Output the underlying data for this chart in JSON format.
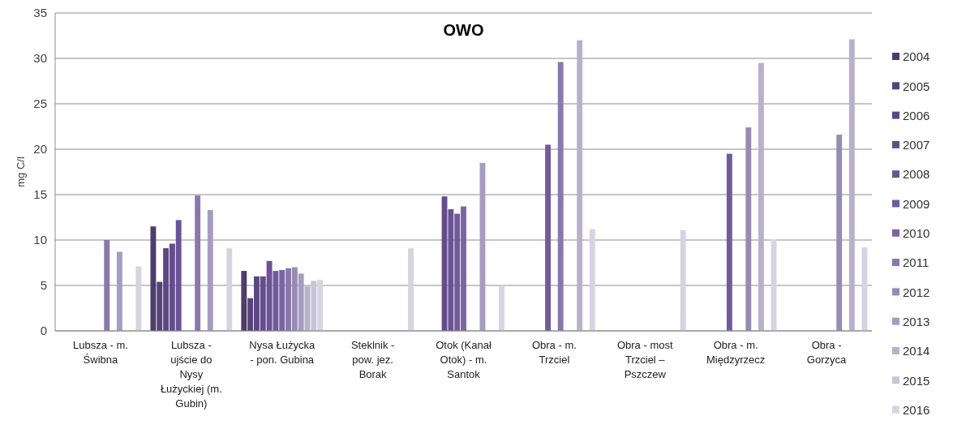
{
  "chart_data": {
    "type": "bar",
    "title": "OWO",
    "ylabel": "mg C/l",
    "categories": [
      "Lubsza - m. Świbna",
      "Lubsza - ujście do Nysy Łużyckiej (m. Gubin)",
      "Nysa Łużycka - pon. Gubina",
      "Steklnik - pow. jez. Borak",
      "Otok (Kanał Otok) - m. Santok",
      "Obra - m. Trzciel",
      "Obra - most Trzciel – Pszczew",
      "Obra - m. Międzyrzecz",
      "Obra - Gorzyca"
    ],
    "series": [
      {
        "name": "2004",
        "color": "#4e3d6b",
        "values": [
          null,
          11.5,
          6.6,
          null,
          null,
          null,
          null,
          null,
          null
        ]
      },
      {
        "name": "2005",
        "color": "#55437a",
        "values": [
          null,
          5.4,
          3.6,
          null,
          null,
          null,
          null,
          null,
          null
        ]
      },
      {
        "name": "2006",
        "color": "#5c4783",
        "values": [
          null,
          9.1,
          6.0,
          null,
          null,
          null,
          null,
          null,
          null
        ]
      },
      {
        "name": "2007",
        "color": "#634d8b",
        "values": [
          null,
          9.6,
          6.0,
          null,
          14.8,
          null,
          null,
          null,
          null
        ]
      },
      {
        "name": "2008",
        "color": "#6a5394",
        "values": [
          null,
          12.2,
          7.7,
          null,
          13.4,
          null,
          null,
          null,
          null
        ]
      },
      {
        "name": "2009",
        "color": "#725a9c",
        "values": [
          null,
          null,
          6.6,
          null,
          12.9,
          20.5,
          null,
          19.5,
          null
        ]
      },
      {
        "name": "2010",
        "color": "#7b63a5",
        "values": [
          null,
          null,
          6.7,
          null,
          13.7,
          null,
          null,
          null,
          null
        ]
      },
      {
        "name": "2011",
        "color": "#8a77ab",
        "values": [
          10.0,
          14.9,
          6.9,
          null,
          null,
          29.6,
          null,
          null,
          null
        ]
      },
      {
        "name": "2012",
        "color": "#978ab3",
        "values": [
          null,
          null,
          7.0,
          null,
          null,
          null,
          null,
          22.4,
          21.6
        ]
      },
      {
        "name": "2013",
        "color": "#a69cbf",
        "values": [
          8.7,
          13.3,
          6.3,
          null,
          18.5,
          null,
          null,
          null,
          null
        ]
      },
      {
        "name": "2014",
        "color": "#b8b1cc",
        "values": [
          null,
          null,
          4.9,
          null,
          null,
          32.0,
          null,
          29.5,
          32.1
        ]
      },
      {
        "name": "2015",
        "color": "#c8c4d8",
        "values": [
          null,
          null,
          5.5,
          null,
          null,
          null,
          null,
          null,
          null
        ]
      },
      {
        "name": "2016",
        "color": "#d6d3e2",
        "values": [
          7.1,
          9.1,
          5.6,
          9.1,
          5.0,
          11.2,
          11.1,
          10.1,
          9.2
        ]
      }
    ],
    "ylim": [
      0,
      35
    ],
    "yticks": [
      0,
      5,
      10,
      15,
      20,
      25,
      30,
      35
    ],
    "grid": "y",
    "legend": "right"
  }
}
